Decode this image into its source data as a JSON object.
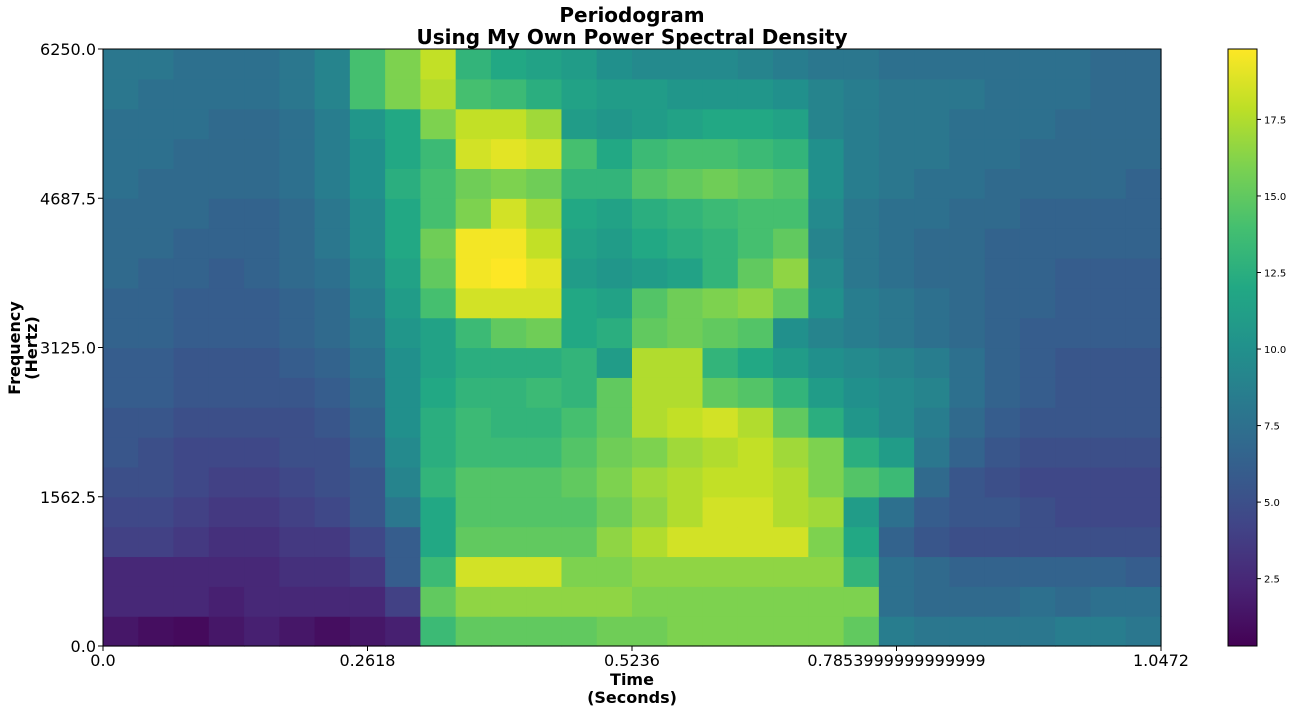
{
  "chart_data": {
    "type": "heatmap",
    "title": [
      "Periodogram",
      "Using My Own Power Spectral Density"
    ],
    "xlabel": [
      "Time",
      "(Seconds)"
    ],
    "ylabel": [
      "Frequency",
      "(Hertz)"
    ],
    "xlim": [
      0,
      1.0472
    ],
    "ylim": [
      0,
      6250
    ],
    "xticks": [
      0,
      0.2618,
      0.5236,
      0.7854,
      1.0472
    ],
    "xtick_labels": [
      "0.0",
      "0.2618",
      "0.5236",
      "0.7853999999999999",
      "1.0472"
    ],
    "yticks": [
      0,
      1562.5,
      3125,
      4687.5,
      6250
    ],
    "ytick_labels": [
      "0.0",
      "1562.5",
      "3125.0",
      "4687.5",
      "6250.0"
    ],
    "colorbar": {
      "vmin": 0.3,
      "vmax": 19.8,
      "ticks": [
        2.5,
        5.0,
        7.5,
        10.0,
        12.5,
        15.0,
        17.5
      ],
      "tick_labels": [
        "2.5",
        "5.0",
        "7.5",
        "10.0",
        "12.5",
        "15.0",
        "17.5"
      ],
      "colormap": "viridis"
    },
    "freq_bins": 20,
    "time_bins": 30,
    "values": [
      [
        1.5,
        1.0,
        0.8,
        1.5,
        2.0,
        1.5,
        1.0,
        1.5,
        2.0,
        13.5,
        15.0,
        15.0,
        15.0,
        15.0,
        15.5,
        15.5,
        16.0,
        16.0,
        16.0,
        16.0,
        16.0,
        15.0,
        8.5,
        8.0,
        8.0,
        8.0,
        8.0,
        8.5,
        8.5,
        8.0
      ],
      [
        2.5,
        2.5,
        2.5,
        2.0,
        2.5,
        2.5,
        2.5,
        2.5,
        4.0,
        15.0,
        16.5,
        16.5,
        16.5,
        16.5,
        16.5,
        16.0,
        16.0,
        16.0,
        16.0,
        16.0,
        16.0,
        16.0,
        7.5,
        7.0,
        7.0,
        7.0,
        7.5,
        7.0,
        7.5,
        7.5
      ],
      [
        2.5,
        2.5,
        2.5,
        2.5,
        2.5,
        3.0,
        3.0,
        3.5,
        6.0,
        13.5,
        18.5,
        18.5,
        18.5,
        16.0,
        16.0,
        16.5,
        16.5,
        16.5,
        16.5,
        16.5,
        16.5,
        13.0,
        7.5,
        7.0,
        6.5,
        6.5,
        6.5,
        6.5,
        6.5,
        6.0
      ],
      [
        4.0,
        4.0,
        3.5,
        3.0,
        3.0,
        3.5,
        3.5,
        4.5,
        6.0,
        12.0,
        15.0,
        15.0,
        15.0,
        15.0,
        16.5,
        17.5,
        18.5,
        18.5,
        18.5,
        18.5,
        16.0,
        12.0,
        6.5,
        5.5,
        5.0,
        5.0,
        5.0,
        5.0,
        5.0,
        5.0
      ],
      [
        4.5,
        4.5,
        4.0,
        3.5,
        3.5,
        4.0,
        4.5,
        5.5,
        8.0,
        12.0,
        14.5,
        14.5,
        14.5,
        14.5,
        15.5,
        16.5,
        17.5,
        18.5,
        18.5,
        17.5,
        17.0,
        11.0,
        7.5,
        6.0,
        5.5,
        5.5,
        5.0,
        4.5,
        4.5,
        4.5
      ],
      [
        5.0,
        5.0,
        4.5,
        4.0,
        4.0,
        4.5,
        5.0,
        5.5,
        9.0,
        13.0,
        14.5,
        14.5,
        14.5,
        15.0,
        16.0,
        17.0,
        17.5,
        18.0,
        18.0,
        17.5,
        16.0,
        14.5,
        13.5,
        7.0,
        5.5,
        5.0,
        4.5,
        4.5,
        4.5,
        4.5
      ],
      [
        5.5,
        5.0,
        4.5,
        4.5,
        4.5,
        5.0,
        5.0,
        6.0,
        9.5,
        12.5,
        13.5,
        13.5,
        13.5,
        14.5,
        15.5,
        16.0,
        17.0,
        17.5,
        18.0,
        17.0,
        16.0,
        12.5,
        11.0,
        8.0,
        6.5,
        5.5,
        5.0,
        5.0,
        5.0,
        5.0
      ],
      [
        5.5,
        5.5,
        5.0,
        5.0,
        5.0,
        5.0,
        5.5,
        6.5,
        10.0,
        12.5,
        13.5,
        13.0,
        13.0,
        14.0,
        15.0,
        17.5,
        18.0,
        18.5,
        17.5,
        15.0,
        12.5,
        10.5,
        9.5,
        8.5,
        7.0,
        6.0,
        5.5,
        5.5,
        5.5,
        5.5
      ],
      [
        6.0,
        6.0,
        5.5,
        5.5,
        5.5,
        5.5,
        6.0,
        7.0,
        10.0,
        12.0,
        13.0,
        13.0,
        13.5,
        13.0,
        15.0,
        17.5,
        17.5,
        15.0,
        14.5,
        13.0,
        11.0,
        10.0,
        9.5,
        9.0,
        7.5,
        6.5,
        6.0,
        5.5,
        5.5,
        5.5
      ],
      [
        6.0,
        6.0,
        5.5,
        5.5,
        5.5,
        6.0,
        6.5,
        7.5,
        10.0,
        11.5,
        12.5,
        12.5,
        12.5,
        13.0,
        11.0,
        17.5,
        17.5,
        13.0,
        12.0,
        11.0,
        10.0,
        9.5,
        9.0,
        8.5,
        7.5,
        6.5,
        6.0,
        5.5,
        5.5,
        5.5
      ],
      [
        6.5,
        6.5,
        6.0,
        6.0,
        6.0,
        6.5,
        7.0,
        8.0,
        10.5,
        11.5,
        13.5,
        15.0,
        15.5,
        12.0,
        12.5,
        15.0,
        15.5,
        15.0,
        14.5,
        10.0,
        9.0,
        8.5,
        8.0,
        7.5,
        7.0,
        6.5,
        6.0,
        6.0,
        6.0,
        6.0
      ],
      [
        6.5,
        6.5,
        6.0,
        6.0,
        6.0,
        6.5,
        7.0,
        8.5,
        11.0,
        14.0,
        18.5,
        18.5,
        18.5,
        12.0,
        11.5,
        14.5,
        15.5,
        16.0,
        16.5,
        15.0,
        10.0,
        8.5,
        8.0,
        7.5,
        7.0,
        6.5,
        6.5,
        6.0,
        6.0,
        6.0
      ],
      [
        7.0,
        6.5,
        6.5,
        6.0,
        6.5,
        7.0,
        7.5,
        9.0,
        11.5,
        15.0,
        19.5,
        19.8,
        19.0,
        11.0,
        10.5,
        11.0,
        11.5,
        13.0,
        15.0,
        16.5,
        9.5,
        8.0,
        7.5,
        7.0,
        7.0,
        6.5,
        6.5,
        6.0,
        6.0,
        6.0
      ],
      [
        7.0,
        7.0,
        6.5,
        6.5,
        6.5,
        7.0,
        8.0,
        9.5,
        12.0,
        15.5,
        19.5,
        19.5,
        18.0,
        11.5,
        11.0,
        12.0,
        12.5,
        13.0,
        14.0,
        15.0,
        9.0,
        8.0,
        7.5,
        7.0,
        7.0,
        6.5,
        6.5,
        6.5,
        6.5,
        6.5
      ],
      [
        7.0,
        7.0,
        7.0,
        6.5,
        6.5,
        7.0,
        8.0,
        9.5,
        12.0,
        14.0,
        16.0,
        18.5,
        17.0,
        12.0,
        11.5,
        12.5,
        13.0,
        13.5,
        14.0,
        14.0,
        9.5,
        8.0,
        7.5,
        7.5,
        7.0,
        7.0,
        6.5,
        6.5,
        6.5,
        6.5
      ],
      [
        7.5,
        7.0,
        7.0,
        7.0,
        7.0,
        7.5,
        8.5,
        10.0,
        12.5,
        14.0,
        15.5,
        16.0,
        15.5,
        13.0,
        13.0,
        14.5,
        15.0,
        15.5,
        15.0,
        14.5,
        10.0,
        8.5,
        8.0,
        7.5,
        7.5,
        7.0,
        7.0,
        7.0,
        7.0,
        6.5
      ],
      [
        7.5,
        7.5,
        7.0,
        7.0,
        7.0,
        7.5,
        8.5,
        10.0,
        12.0,
        13.5,
        18.5,
        19.0,
        18.5,
        14.0,
        12.0,
        13.5,
        14.0,
        14.0,
        13.5,
        13.0,
        10.0,
        8.5,
        8.0,
        8.0,
        7.5,
        7.5,
        7.0,
        7.0,
        7.0,
        7.0
      ],
      [
        7.5,
        7.5,
        7.5,
        7.0,
        7.0,
        7.5,
        8.5,
        10.5,
        12.0,
        16.0,
        18.0,
        18.0,
        17.0,
        11.0,
        10.5,
        11.0,
        11.5,
        12.0,
        12.0,
        11.5,
        9.0,
        8.5,
        8.0,
        8.0,
        7.5,
        7.5,
        7.5,
        7.0,
        7.0,
        7.0
      ],
      [
        8.0,
        7.5,
        7.5,
        7.5,
        7.5,
        8.0,
        9.0,
        14.0,
        16.0,
        17.5,
        14.0,
        13.5,
        12.5,
        11.5,
        11.0,
        11.0,
        10.5,
        10.5,
        10.5,
        10.0,
        9.0,
        8.5,
        8.0,
        8.0,
        8.0,
        7.5,
        7.5,
        7.5,
        7.0,
        7.0
      ],
      [
        8.0,
        8.0,
        7.5,
        7.5,
        7.5,
        8.0,
        9.0,
        14.0,
        16.0,
        18.0,
        13.0,
        12.0,
        11.5,
        11.0,
        10.0,
        9.5,
        9.5,
        9.5,
        9.0,
        8.5,
        8.0,
        8.0,
        7.5,
        7.5,
        7.5,
        7.5,
        7.5,
        7.5,
        7.0,
        7.0
      ]
    ]
  }
}
